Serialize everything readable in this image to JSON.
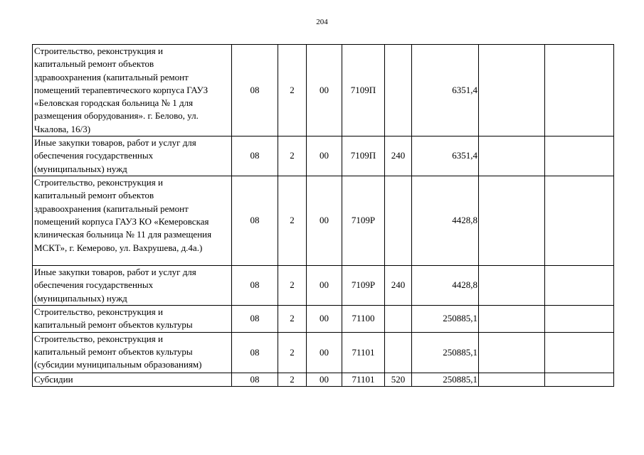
{
  "page_number": "204",
  "rows": [
    {
      "name": "Строительство, реконструкция и\nкапитальный ремонт объектов\nздравоохранения (капитальный ремонт\nпомещений терапевтического корпуса ГАУЗ\n«Беловская городская больница № 1 для\nразмещения оборудования». г. Белово, ул.\nЧкалова, 16/3)",
      "rz": "08",
      "prz": "2",
      "p": "00",
      "csr": "7109П",
      "vr": "",
      "sum": "6351,4",
      "c8": "",
      "c9": ""
    },
    {
      "name": "Иные закупки товаров, работ и услуг для\nобеспечения государственных\n(муниципальных) нужд",
      "rz": "08",
      "prz": "2",
      "p": "00",
      "csr": "7109П",
      "vr": "240",
      "sum": "6351,4",
      "c8": "",
      "c9": ""
    },
    {
      "name": "Строительство, реконструкция и\nкапитальный ремонт объектов\nздравоохранения (капитальный ремонт\nпомещений корпуса ГАУЗ КО «Кемеровская\nклиническая больница № 11 для размещения\nМСКТ», г. Кемерово, ул. Вахрушева, д.4а.)",
      "rz": "08",
      "prz": "2",
      "p": "00",
      "csr": "7109Р",
      "vr": "",
      "sum": "4428,8",
      "c8": "",
      "c9": ""
    },
    {
      "name": "Иные закупки товаров, работ и услуг для\nобеспечения государственных\n(муниципальных) нужд",
      "rz": "08",
      "prz": "2",
      "p": "00",
      "csr": "7109Р",
      "vr": "240",
      "sum": "4428,8",
      "c8": "",
      "c9": ""
    },
    {
      "name": "Строительство, реконструкция и\nкапитальный ремонт объектов культуры",
      "rz": "08",
      "prz": "2",
      "p": "00",
      "csr": "71100",
      "vr": "",
      "sum": "250885,1",
      "c8": "",
      "c9": ""
    },
    {
      "name": "Строительство, реконструкция и\nкапитальный ремонт объектов культуры\n(субсидии муниципальным образованиям)",
      "rz": "08",
      "prz": "2",
      "p": "00",
      "csr": "71101",
      "vr": "",
      "sum": "250885,1",
      "c8": "",
      "c9": ""
    },
    {
      "name": "Субсидии",
      "rz": "08",
      "prz": "2",
      "p": "00",
      "csr": "71101",
      "vr": "520",
      "sum": "250885,1",
      "c8": "",
      "c9": ""
    }
  ]
}
